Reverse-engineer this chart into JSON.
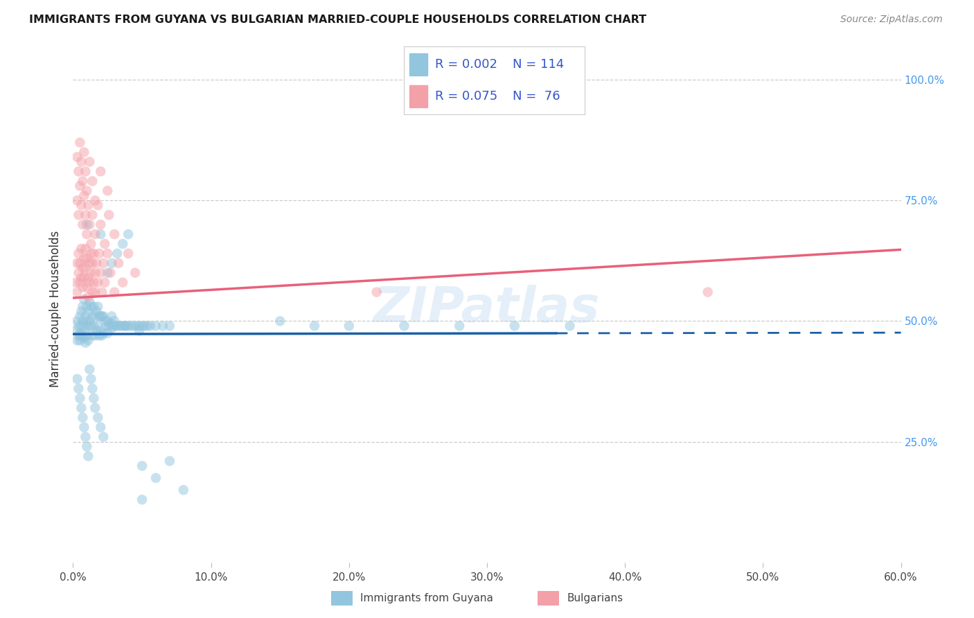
{
  "title": "IMMIGRANTS FROM GUYANA VS BULGARIAN MARRIED-COUPLE HOUSEHOLDS CORRELATION CHART",
  "source": "Source: ZipAtlas.com",
  "ylabel_label": "Married-couple Households",
  "xlabel_label_guyana": "Immigrants from Guyana",
  "xlabel_label_bulgarian": "Bulgarians",
  "xlim": [
    0.0,
    0.6
  ],
  "ylim": [
    0.0,
    1.05
  ],
  "yticks": [
    0.25,
    0.5,
    0.75,
    1.0
  ],
  "xticks": [
    0.0,
    0.1,
    0.2,
    0.3,
    0.4,
    0.5,
    0.6
  ],
  "guyana_color": "#92c5de",
  "bulgarian_color": "#f4a0a8",
  "guyana_line_color": "#1a5fa8",
  "bulgarian_line_color": "#e8607a",
  "legend_R1": "0.002",
  "legend_N1": "114",
  "legend_R2": "0.075",
  "legend_N2": " 76",
  "legend_text_color": "#3355cc",
  "title_color": "#1a1a1a",
  "source_color": "#888888",
  "axis_label_color": "#333333",
  "grid_color": "#cccccc",
  "right_tick_color": "#4499ee",
  "guyana_alpha": 0.5,
  "bulgarian_alpha": 0.5,
  "scatter_size": 110,
  "n_guyana": 114,
  "n_bulgarian": 76,
  "guyana_x": [
    0.002,
    0.003,
    0.003,
    0.004,
    0.004,
    0.005,
    0.005,
    0.005,
    0.006,
    0.006,
    0.006,
    0.007,
    0.007,
    0.007,
    0.008,
    0.008,
    0.008,
    0.009,
    0.009,
    0.009,
    0.01,
    0.01,
    0.01,
    0.011,
    0.011,
    0.011,
    0.012,
    0.012,
    0.013,
    0.013,
    0.014,
    0.014,
    0.015,
    0.015,
    0.016,
    0.016,
    0.017,
    0.017,
    0.018,
    0.018,
    0.019,
    0.019,
    0.02,
    0.02,
    0.021,
    0.021,
    0.022,
    0.022,
    0.023,
    0.024,
    0.025,
    0.025,
    0.026,
    0.027,
    0.028,
    0.029,
    0.03,
    0.031,
    0.032,
    0.034,
    0.035,
    0.037,
    0.038,
    0.04,
    0.042,
    0.044,
    0.046,
    0.048,
    0.05,
    0.052,
    0.054,
    0.056,
    0.06,
    0.065,
    0.07,
    0.003,
    0.004,
    0.005,
    0.006,
    0.007,
    0.008,
    0.009,
    0.01,
    0.011,
    0.012,
    0.013,
    0.014,
    0.015,
    0.016,
    0.018,
    0.02,
    0.022,
    0.025,
    0.028,
    0.032,
    0.036,
    0.04,
    0.05,
    0.028,
    0.038,
    0.048,
    0.15,
    0.175,
    0.2,
    0.24,
    0.28,
    0.32,
    0.36,
    0.05,
    0.06,
    0.07,
    0.08,
    0.01,
    0.02
  ],
  "guyana_y": [
    0.48,
    0.5,
    0.46,
    0.49,
    0.47,
    0.51,
    0.475,
    0.46,
    0.52,
    0.49,
    0.47,
    0.53,
    0.5,
    0.47,
    0.545,
    0.49,
    0.465,
    0.51,
    0.48,
    0.455,
    0.53,
    0.5,
    0.47,
    0.52,
    0.49,
    0.46,
    0.54,
    0.5,
    0.53,
    0.49,
    0.51,
    0.47,
    0.53,
    0.49,
    0.51,
    0.47,
    0.52,
    0.48,
    0.53,
    0.49,
    0.51,
    0.47,
    0.51,
    0.48,
    0.51,
    0.47,
    0.51,
    0.475,
    0.5,
    0.49,
    0.5,
    0.475,
    0.49,
    0.495,
    0.485,
    0.49,
    0.5,
    0.49,
    0.49,
    0.49,
    0.49,
    0.49,
    0.49,
    0.49,
    0.49,
    0.49,
    0.49,
    0.49,
    0.49,
    0.49,
    0.49,
    0.49,
    0.49,
    0.49,
    0.49,
    0.38,
    0.36,
    0.34,
    0.32,
    0.3,
    0.28,
    0.26,
    0.24,
    0.22,
    0.4,
    0.38,
    0.36,
    0.34,
    0.32,
    0.3,
    0.28,
    0.26,
    0.6,
    0.62,
    0.64,
    0.66,
    0.68,
    0.2,
    0.51,
    0.49,
    0.48,
    0.5,
    0.49,
    0.49,
    0.49,
    0.49,
    0.49,
    0.49,
    0.13,
    0.175,
    0.21,
    0.15,
    0.7,
    0.68
  ],
  "bulgarian_x": [
    0.002,
    0.003,
    0.003,
    0.004,
    0.004,
    0.005,
    0.005,
    0.006,
    0.006,
    0.007,
    0.007,
    0.008,
    0.008,
    0.009,
    0.009,
    0.01,
    0.01,
    0.011,
    0.011,
    0.012,
    0.012,
    0.013,
    0.013,
    0.014,
    0.014,
    0.015,
    0.015,
    0.016,
    0.016,
    0.017,
    0.018,
    0.019,
    0.02,
    0.021,
    0.022,
    0.023,
    0.025,
    0.027,
    0.03,
    0.033,
    0.036,
    0.04,
    0.045,
    0.003,
    0.004,
    0.005,
    0.006,
    0.007,
    0.008,
    0.009,
    0.01,
    0.011,
    0.012,
    0.013,
    0.014,
    0.016,
    0.018,
    0.02,
    0.023,
    0.026,
    0.03,
    0.003,
    0.004,
    0.005,
    0.006,
    0.007,
    0.008,
    0.009,
    0.01,
    0.012,
    0.014,
    0.016,
    0.02,
    0.025,
    0.22,
    0.46
  ],
  "bulgarian_y": [
    0.58,
    0.62,
    0.56,
    0.6,
    0.64,
    0.58,
    0.62,
    0.59,
    0.65,
    0.61,
    0.57,
    0.63,
    0.59,
    0.65,
    0.61,
    0.57,
    0.63,
    0.59,
    0.55,
    0.62,
    0.58,
    0.64,
    0.6,
    0.56,
    0.62,
    0.58,
    0.64,
    0.6,
    0.56,
    0.62,
    0.58,
    0.64,
    0.6,
    0.56,
    0.62,
    0.58,
    0.64,
    0.6,
    0.56,
    0.62,
    0.58,
    0.64,
    0.6,
    0.75,
    0.72,
    0.78,
    0.74,
    0.7,
    0.76,
    0.72,
    0.68,
    0.74,
    0.7,
    0.66,
    0.72,
    0.68,
    0.74,
    0.7,
    0.66,
    0.72,
    0.68,
    0.84,
    0.81,
    0.87,
    0.83,
    0.79,
    0.85,
    0.81,
    0.77,
    0.83,
    0.79,
    0.75,
    0.81,
    0.77,
    0.56,
    0.56
  ]
}
